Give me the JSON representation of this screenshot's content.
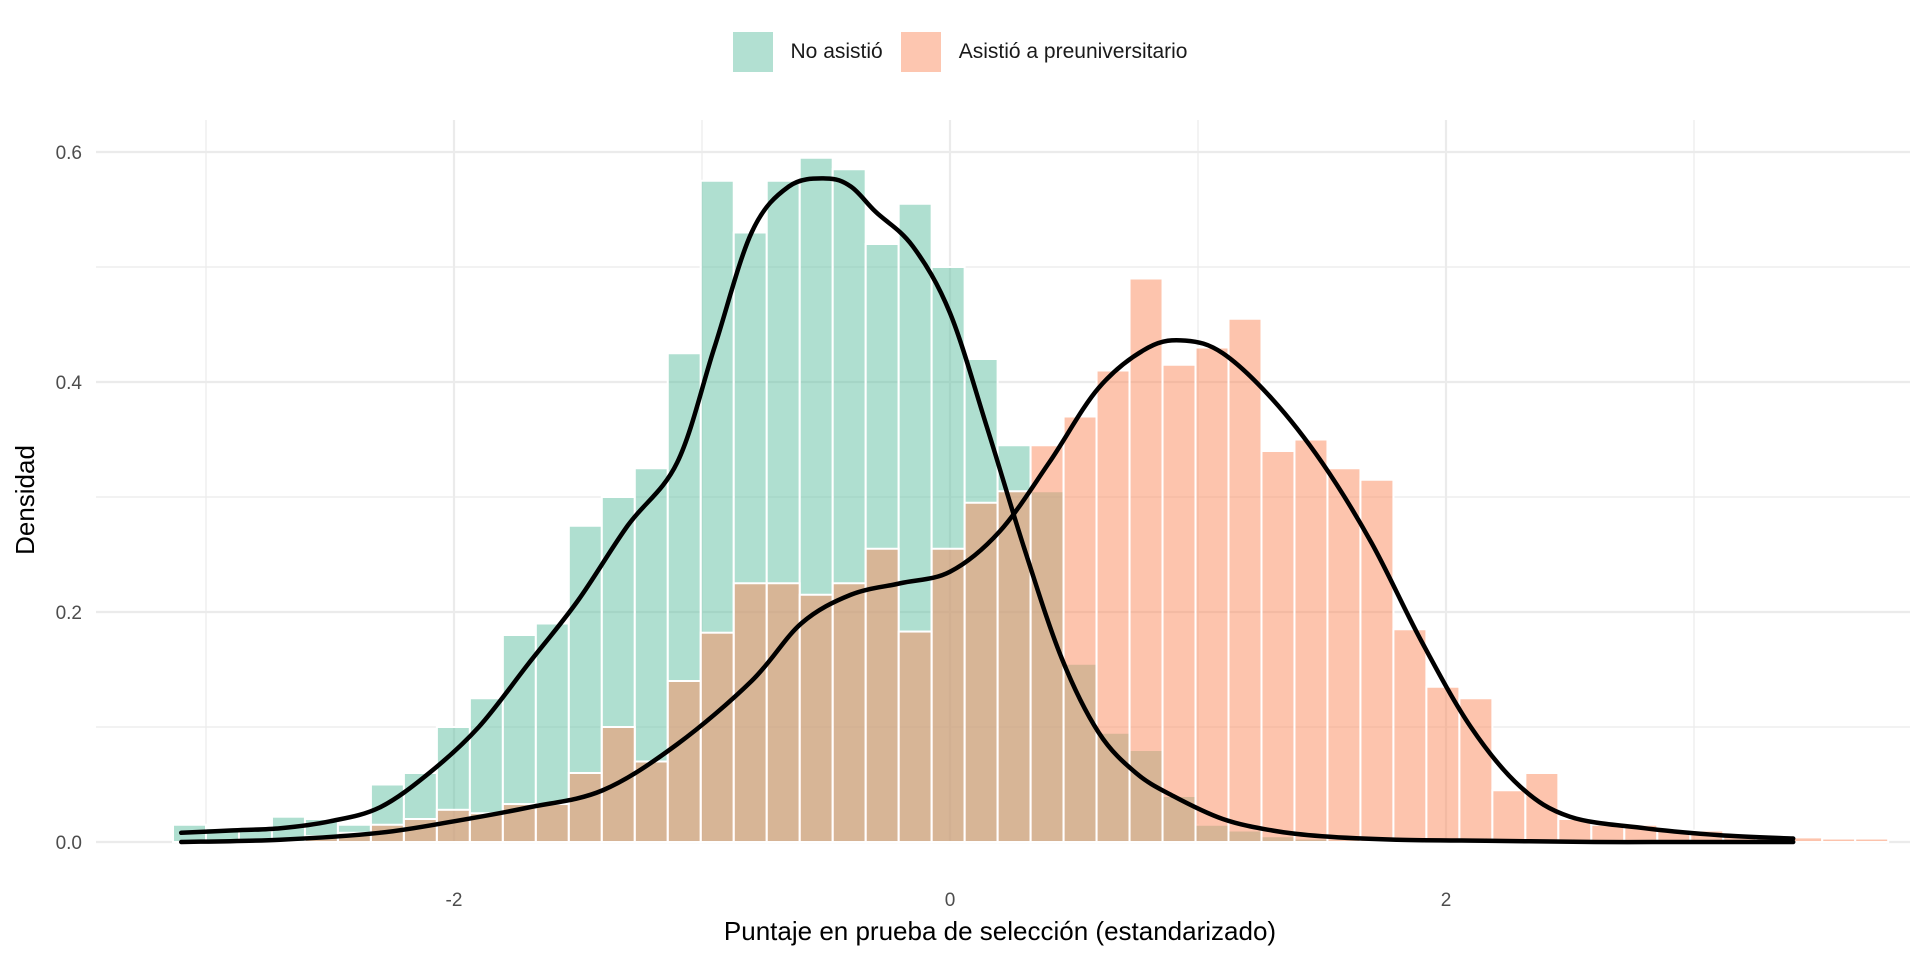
{
  "chart_data": {
    "type": "histogram",
    "xlabel": "Puntaje en prueba de selección (estandarizado)",
    "ylabel": "Densidad",
    "xlim": [
      -3.2,
      3.7
    ],
    "ylim": [
      0,
      0.6
    ],
    "x_ticks": [
      -2,
      0,
      2
    ],
    "x_tick_labels": [
      "-2",
      "0",
      "2"
    ],
    "y_ticks": [
      0.0,
      0.2,
      0.4,
      0.6
    ],
    "y_tick_labels": [
      "0.0",
      "0.2",
      "0.4",
      "0.6"
    ],
    "grid": true,
    "legend_position": "top",
    "bin_width": 0.133,
    "series": [
      {
        "name": "No asistió",
        "color": "#66c2a5",
        "bin_start": -3.133,
        "densities": [
          0.015,
          0.012,
          0.01,
          0.022,
          0.02,
          0.015,
          0.05,
          0.06,
          0.1,
          0.125,
          0.18,
          0.19,
          0.275,
          0.3,
          0.325,
          0.425,
          0.575,
          0.53,
          0.575,
          0.595,
          0.585,
          0.52,
          0.555,
          0.5,
          0.42,
          0.345,
          0.305,
          0.155,
          0.095,
          0.08,
          0.04,
          0.015,
          0.01,
          0.005,
          0.003,
          0.002,
          0.001,
          0.001,
          0.0,
          0.0,
          0.0,
          0.0,
          0.0,
          0.0,
          0.0,
          0.0,
          0.0,
          0.0,
          0.0,
          0.0,
          0.0,
          0.0
        ],
        "density_curve": {
          "x": [
            -3.1,
            -2.9,
            -2.7,
            -2.5,
            -2.3,
            -2.1,
            -1.9,
            -1.7,
            -1.5,
            -1.3,
            -1.1,
            -0.95,
            -0.8,
            -0.65,
            -0.5,
            -0.4,
            -0.3,
            -0.15,
            0.0,
            0.15,
            0.3,
            0.45,
            0.6,
            0.75,
            0.9,
            1.1,
            1.3,
            1.5,
            1.8,
            2.2,
            2.6,
            3.0,
            3.4
          ],
          "y": [
            0.008,
            0.01,
            0.012,
            0.018,
            0.03,
            0.06,
            0.1,
            0.155,
            0.21,
            0.275,
            0.33,
            0.43,
            0.53,
            0.57,
            0.577,
            0.57,
            0.548,
            0.518,
            0.46,
            0.36,
            0.255,
            0.16,
            0.095,
            0.06,
            0.04,
            0.02,
            0.01,
            0.005,
            0.002,
            0.001,
            0.0,
            0.0,
            0.0
          ]
        }
      },
      {
        "name": "Asistió a preuniversitario",
        "color": "#fc8d62",
        "bin_start": -3.133,
        "densities": [
          0.0,
          0.0,
          0.0,
          0.0,
          0.005,
          0.008,
          0.015,
          0.02,
          0.028,
          0.025,
          0.033,
          0.033,
          0.06,
          0.1,
          0.07,
          0.14,
          0.182,
          0.225,
          0.225,
          0.215,
          0.225,
          0.255,
          0.183,
          0.255,
          0.295,
          0.305,
          0.345,
          0.37,
          0.41,
          0.49,
          0.415,
          0.43,
          0.455,
          0.34,
          0.35,
          0.325,
          0.315,
          0.185,
          0.135,
          0.125,
          0.045,
          0.06,
          0.02,
          0.015,
          0.015,
          0.01,
          0.01,
          0.005,
          0.005,
          0.004,
          0.003,
          0.003
        ],
        "density_curve": {
          "x": [
            -3.1,
            -2.7,
            -2.3,
            -2.0,
            -1.7,
            -1.4,
            -1.1,
            -0.8,
            -0.6,
            -0.4,
            -0.2,
            0.0,
            0.2,
            0.4,
            0.6,
            0.8,
            0.95,
            1.1,
            1.3,
            1.5,
            1.7,
            1.9,
            2.1,
            2.3,
            2.5,
            2.8,
            3.1,
            3.4
          ],
          "y": [
            0.0,
            0.002,
            0.008,
            0.018,
            0.03,
            0.045,
            0.085,
            0.14,
            0.19,
            0.215,
            0.225,
            0.235,
            0.27,
            0.33,
            0.395,
            0.43,
            0.436,
            0.425,
            0.385,
            0.33,
            0.26,
            0.175,
            0.1,
            0.048,
            0.022,
            0.012,
            0.006,
            0.003
          ]
        }
      }
    ]
  }
}
